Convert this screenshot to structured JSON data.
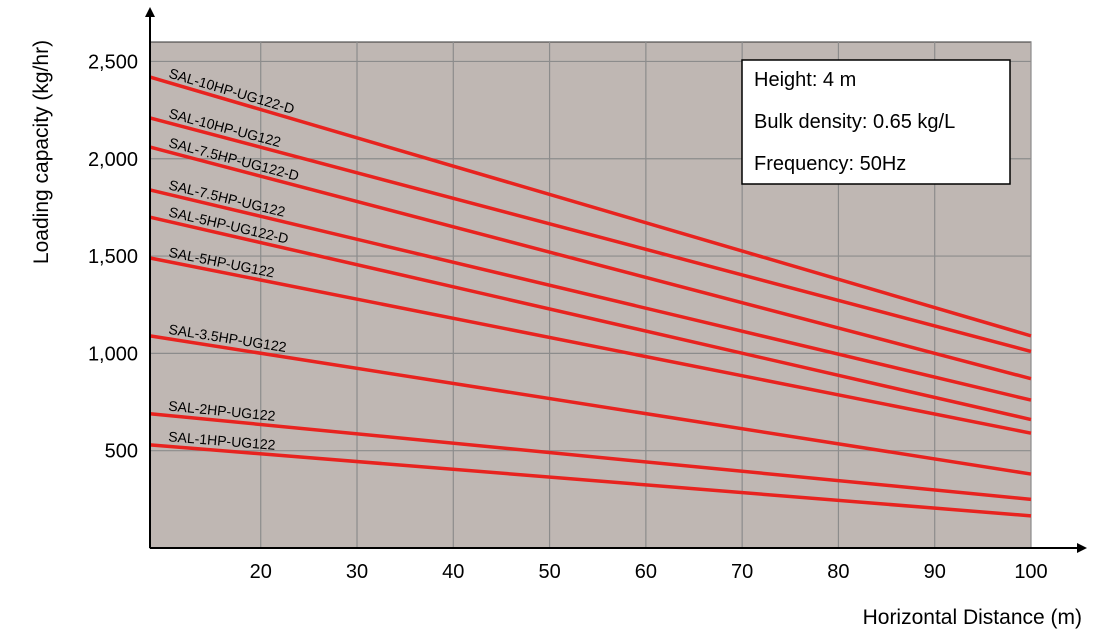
{
  "chart_data": {
    "type": "line",
    "xlabel": "Horizontal Distance (m)",
    "ylabel": "Loading capacity (kg/hr)",
    "xlim": [
      8.5,
      100
    ],
    "ylim": [
      0,
      2600
    ],
    "x_ticks": [
      20,
      30,
      40,
      50,
      60,
      70,
      80,
      90,
      100
    ],
    "x_tick_labels": [
      "20",
      "30",
      "40",
      "50",
      "60",
      "70",
      "80",
      "90",
      "100"
    ],
    "y_ticks": [
      500,
      1000,
      1500,
      2000,
      2500
    ],
    "y_tick_labels": [
      "500",
      "1,000",
      "1,500",
      "2,000",
      "2,500"
    ],
    "grid": true,
    "x": [
      8.5,
      100
    ],
    "series": [
      {
        "name": "SAL-10HP-UG122-D",
        "values": [
          2420,
          1090
        ],
        "color": "#e8231f"
      },
      {
        "name": "SAL-10HP-UG122",
        "values": [
          2210,
          1010
        ],
        "color": "#e8231f"
      },
      {
        "name": "SAL-7.5HP-UG122-D",
        "values": [
          2060,
          870
        ],
        "color": "#e8231f"
      },
      {
        "name": "SAL-7.5HP-UG122",
        "values": [
          1840,
          760
        ],
        "color": "#e8231f"
      },
      {
        "name": "SAL-5HP-UG122-D",
        "values": [
          1700,
          660
        ],
        "color": "#e8231f"
      },
      {
        "name": "SAL-5HP-UG122",
        "values": [
          1490,
          590
        ],
        "color": "#e8231f"
      },
      {
        "name": "SAL-3.5HP-UG122",
        "values": [
          1090,
          380
        ],
        "color": "#e8231f"
      },
      {
        "name": "SAL-2HP-UG122",
        "values": [
          690,
          250
        ],
        "color": "#e8231f"
      },
      {
        "name": "SAL-1HP-UG122",
        "values": [
          530,
          165
        ],
        "color": "#e8231f"
      }
    ],
    "info_box": [
      "Height: 4 m",
      "Bulk density: 0.65 kg/L",
      "Frequency: 50Hz"
    ],
    "plot_background": "#bfb7b3",
    "grid_color": "#8c8c8c"
  }
}
